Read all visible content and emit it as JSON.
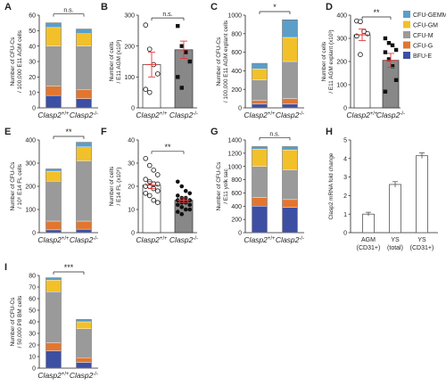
{
  "colors": {
    "CFU-GEMM": "#5a9ec9",
    "CFU-GM": "#f2c029",
    "CFU-M": "#9a9a9a",
    "CFU-G": "#e2762f",
    "BFU-E": "#3d4fa3",
    "error": "#e23b3b",
    "axis": "#222222"
  },
  "legend": [
    "CFU-GEMM",
    "CFU-GM",
    "CFU-M",
    "CFU-G",
    "BFU-E"
  ],
  "chart_data": [
    {
      "panel": "A",
      "type": "bar",
      "stacked": true,
      "categories": [
        "Clasp2+/+",
        "Clasp2-/-"
      ],
      "ylabel": "Number of CFU-Cs / 100,000 E11 AGM cells",
      "ylim": [
        0,
        60
      ],
      "yticks": [
        0,
        10,
        20,
        30,
        40,
        50,
        60
      ],
      "significance": "n.s.",
      "series": [
        {
          "name": "BFU-E",
          "values": [
            8,
            6
          ]
        },
        {
          "name": "CFU-G",
          "values": [
            6,
            6
          ]
        },
        {
          "name": "CFU-M",
          "values": [
            26,
            28
          ]
        },
        {
          "name": "CFU-GM",
          "values": [
            12,
            8
          ]
        },
        {
          "name": "CFU-GEMM",
          "values": [
            3,
            3
          ]
        }
      ]
    },
    {
      "panel": "B",
      "type": "scatter",
      "categories": [
        "Clasp2+/+",
        "Clasp2-/-"
      ],
      "ylabel": "Number of cells / E11 AGM (x10³)",
      "ylim": [
        0,
        300
      ],
      "yticks": [
        0,
        100,
        200,
        300
      ],
      "significance": "n.s.",
      "bars": [
        {
          "mean": 140,
          "sem": 40,
          "fill": "#ffffff"
        },
        {
          "mean": 188,
          "sem": 28,
          "fill": "#888888"
        }
      ],
      "points": [
        [
          268,
          190,
          140,
          110,
          60,
          50
        ],
        [
          265,
          200,
          180,
          150,
          100,
          65
        ]
      ],
      "markers": [
        "open-circle",
        "filled-square"
      ]
    },
    {
      "panel": "C",
      "type": "bar",
      "stacked": true,
      "categories": [
        "Clasp2+/+",
        "Clasp2-/-"
      ],
      "ylabel": "Number of CFU-Cs / 100,000 E11 AGM explant cells",
      "ylim": [
        0,
        1000
      ],
      "yticks": [
        0,
        200,
        400,
        600,
        800,
        1000
      ],
      "significance": "*",
      "series": [
        {
          "name": "BFU-E",
          "values": [
            40,
            40
          ]
        },
        {
          "name": "CFU-G",
          "values": [
            40,
            60
          ]
        },
        {
          "name": "CFU-M",
          "values": [
            220,
            400
          ]
        },
        {
          "name": "CFU-GM",
          "values": [
            120,
            260
          ]
        },
        {
          "name": "CFU-GEMM",
          "values": [
            60,
            190
          ]
        }
      ]
    },
    {
      "panel": "D",
      "type": "scatter",
      "categories": [
        "Clasp2+/+",
        "Clasp2-/-"
      ],
      "ylabel": "Number of cells / E11 AGM explant (x10³)",
      "ylim": [
        0,
        400
      ],
      "yticks": [
        0,
        100,
        200,
        300,
        400
      ],
      "significance": "**",
      "bars": [
        {
          "mean": 315,
          "sem": 25,
          "fill": "#ffffff"
        },
        {
          "mean": 205,
          "sem": 30,
          "fill": "#888888"
        }
      ],
      "points": [
        [
          375,
          372,
          330,
          320,
          310,
          230
        ],
        [
          300,
          280,
          270,
          250,
          240,
          210,
          180,
          120,
          70
        ]
      ],
      "markers": [
        "open-circle",
        "filled-square"
      ]
    },
    {
      "panel": "E",
      "type": "bar",
      "stacked": true,
      "categories": [
        "Clasp2+/+",
        "Clasp2-/-"
      ],
      "ylabel": "Number of CFU-Cs / 10⁶ E14 FL cells",
      "ylim": [
        0,
        400
      ],
      "yticks": [
        0,
        100,
        200,
        300,
        400
      ],
      "significance": "**",
      "series": [
        {
          "name": "BFU-E",
          "values": [
            12,
            15
          ]
        },
        {
          "name": "CFU-G",
          "values": [
            38,
            35
          ]
        },
        {
          "name": "CFU-M",
          "values": [
            172,
            260
          ]
        },
        {
          "name": "CFU-GM",
          "values": [
            43,
            60
          ]
        },
        {
          "name": "CFU-GEMM",
          "values": [
            10,
            20
          ]
        }
      ]
    },
    {
      "panel": "F",
      "type": "scatter",
      "categories": [
        "Clasp2+/+",
        "Clasp2-/-"
      ],
      "ylabel": "Number of cells / E14 FL (x10⁶)",
      "ylim": [
        0,
        40
      ],
      "yticks": [
        0,
        10,
        20,
        30,
        40
      ],
      "significance": "**",
      "bars": [
        {
          "mean": 20.5,
          "sem": 1.5,
          "fill": "#ffffff"
        },
        {
          "mean": 14,
          "sem": 1.0,
          "fill": "#888888"
        }
      ],
      "points": [
        [
          32,
          29,
          27,
          25,
          23,
          22,
          21,
          21,
          20,
          20,
          19,
          18,
          17,
          16,
          14,
          13
        ],
        [
          22,
          20,
          18,
          17,
          16,
          15,
          15,
          14,
          14,
          13,
          13,
          12,
          12,
          11,
          10,
          10,
          9,
          8
        ]
      ],
      "markers": [
        "open-circle",
        "filled-circle"
      ]
    },
    {
      "panel": "G",
      "type": "bar",
      "stacked": true,
      "categories": [
        "Clasp2+/+",
        "Clasp2-/-"
      ],
      "ylabel": "Number of CFU-Cs / E11 yolk sac",
      "ylim": [
        0,
        1400
      ],
      "yticks": [
        0,
        200,
        400,
        600,
        800,
        1000,
        1200,
        1400
      ],
      "significance": "n.s.",
      "series": [
        {
          "name": "BFU-E",
          "values": [
            400,
            380
          ]
        },
        {
          "name": "CFU-G",
          "values": [
            130,
            120
          ]
        },
        {
          "name": "CFU-M",
          "values": [
            470,
            450
          ]
        },
        {
          "name": "CFU-GM",
          "values": [
            260,
            300
          ]
        },
        {
          "name": "CFU-GEMM",
          "values": [
            40,
            50
          ]
        }
      ]
    },
    {
      "panel": "H",
      "type": "bar",
      "categories": [
        "AGM (CD31+)",
        "YS (total)",
        "YS (CD31+)"
      ],
      "ylabel": "Clasp2 mRNA fold change",
      "ylim": [
        0,
        5
      ],
      "yticks": [
        0,
        1,
        2,
        3,
        4,
        5
      ],
      "values": [
        1.0,
        2.6,
        4.15
      ],
      "errors": [
        0.1,
        0.15,
        0.15
      ]
    },
    {
      "panel": "I",
      "type": "bar",
      "stacked": true,
      "categories": [
        "Clasp2+/+",
        "Clasp2-/-"
      ],
      "ylabel": "Number of CFU-Cs / 50,000 P8 BM cells",
      "ylim": [
        0,
        80
      ],
      "yticks": [
        0,
        10,
        20,
        30,
        40,
        50,
        60,
        70,
        80
      ],
      "significance": "***",
      "series": [
        {
          "name": "BFU-E",
          "values": [
            15,
            5
          ]
        },
        {
          "name": "CFU-G",
          "values": [
            7,
            4
          ]
        },
        {
          "name": "CFU-M",
          "values": [
            44,
            25
          ]
        },
        {
          "name": "CFU-GM",
          "values": [
            10,
            6
          ]
        },
        {
          "name": "CFU-GEMM",
          "values": [
            2,
            2
          ]
        }
      ]
    }
  ]
}
